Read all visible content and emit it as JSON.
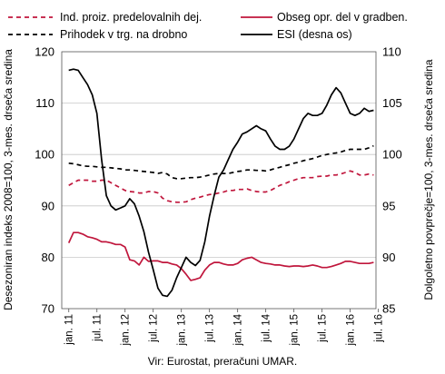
{
  "chart_data": {
    "type": "line",
    "xlabel": "",
    "ylabel": "Desezoniran indeks 2008=100, 3-mes. drseča sredina",
    "y2label": "Dolgoletno povprečje=100, 3-mes. drseča sredina",
    "source": "Vir: Eurostat, preračuni UMAR.",
    "ylim": [
      70,
      120
    ],
    "y2lim": [
      85,
      110
    ],
    "yticks": [
      "70",
      "80",
      "90",
      "100",
      "110",
      "120"
    ],
    "y2ticks": [
      "85",
      "90",
      "95",
      "100",
      "105",
      "110"
    ],
    "xticks": [
      "jan. 11",
      "jul. 11",
      "jan. 12",
      "jul. 12",
      "jan. 13",
      "jul. 13",
      "jan. 14",
      "jul. 14",
      "jan. 15",
      "jul. 15",
      "jan. 16",
      "jul. 16"
    ],
    "grid": "horizontal",
    "x_range_months": [
      0,
      67
    ],
    "series": [
      {
        "name": "Ind. proiz. predelovalnih dej.",
        "axis": "left",
        "color": "#c0163c",
        "dash": true,
        "values": [
          94.0,
          94.5,
          95.0,
          95.0,
          95.0,
          94.8,
          94.8,
          95.0,
          95.0,
          94.5,
          94.0,
          93.5,
          93.0,
          92.8,
          92.7,
          92.5,
          92.5,
          92.8,
          92.8,
          92.5,
          91.5,
          91.0,
          90.8,
          90.7,
          90.7,
          90.8,
          91.2,
          91.5,
          91.7,
          92.0,
          92.2,
          92.3,
          92.5,
          92.7,
          93.0,
          93.0,
          93.2,
          93.2,
          93.3,
          93.0,
          92.8,
          92.7,
          92.7,
          93.0,
          93.5,
          94.0,
          94.3,
          94.7,
          95.0,
          95.3,
          95.5,
          95.5,
          95.5,
          95.7,
          95.8,
          95.8,
          96.0,
          96.0,
          96.2,
          96.5,
          96.8,
          96.5,
          96.0,
          96.0,
          96.2,
          96.0
        ]
      },
      {
        "name": "Obseg opr. del v gradben.",
        "axis": "left",
        "color": "#c0163c",
        "dash": false,
        "values": [
          82.8,
          84.8,
          84.8,
          84.5,
          84.0,
          83.8,
          83.5,
          83.0,
          83.0,
          82.8,
          82.5,
          82.5,
          82.0,
          79.5,
          79.3,
          78.5,
          80.0,
          79.2,
          79.3,
          79.3,
          79.0,
          79.0,
          78.7,
          78.5,
          77.8,
          76.7,
          75.5,
          75.7,
          76.0,
          77.5,
          78.5,
          79.0,
          79.0,
          78.7,
          78.5,
          78.5,
          78.8,
          79.5,
          79.8,
          80.0,
          79.5,
          79.0,
          78.8,
          78.7,
          78.5,
          78.5,
          78.3,
          78.2,
          78.3,
          78.3,
          78.2,
          78.3,
          78.5,
          78.3,
          78.0,
          78.0,
          78.2,
          78.5,
          78.8,
          79.2,
          79.2,
          79.0,
          78.8,
          78.8,
          78.8,
          79.0
        ]
      },
      {
        "name": "Prihodek v trg. na drobno",
        "axis": "left",
        "color": "#000000",
        "dash": true,
        "values": [
          98.3,
          98.2,
          98.0,
          97.8,
          97.7,
          97.7,
          97.6,
          97.5,
          97.5,
          97.4,
          97.3,
          97.2,
          97.0,
          97.0,
          96.9,
          96.8,
          96.7,
          96.6,
          96.5,
          96.3,
          96.5,
          96.2,
          95.5,
          95.3,
          95.3,
          95.4,
          95.5,
          95.5,
          95.6,
          95.8,
          96.0,
          96.2,
          96.3,
          96.3,
          96.3,
          96.5,
          96.7,
          96.8,
          97.0,
          97.0,
          96.9,
          96.9,
          96.8,
          97.0,
          97.3,
          97.5,
          97.8,
          98.0,
          98.3,
          98.5,
          98.8,
          99.0,
          99.2,
          99.5,
          99.8,
          100.0,
          100.2,
          100.3,
          100.5,
          100.8,
          101.0,
          101.0,
          101.0,
          101.0,
          101.3,
          101.7
        ]
      },
      {
        "name": "ESI (desna os)",
        "axis": "right",
        "color": "#000000",
        "dash": false,
        "values": [
          108.2,
          108.3,
          108.2,
          107.5,
          106.8,
          105.8,
          104.0,
          99.5,
          96.0,
          95.0,
          94.6,
          94.8,
          95.0,
          95.7,
          95.2,
          94.0,
          92.5,
          90.5,
          88.8,
          87.0,
          86.3,
          86.2,
          86.8,
          88.0,
          89.0,
          90.0,
          89.5,
          89.2,
          89.7,
          91.5,
          94.0,
          96.0,
          97.8,
          98.5,
          99.5,
          100.5,
          101.2,
          102.0,
          102.2,
          102.5,
          102.8,
          102.5,
          102.3,
          101.5,
          100.8,
          100.5,
          100.5,
          100.8,
          101.5,
          102.5,
          103.5,
          104.0,
          103.8,
          103.8,
          104.0,
          104.8,
          105.8,
          106.5,
          106.0,
          105.0,
          104.0,
          103.8,
          104.0,
          104.5,
          104.2,
          104.3
        ]
      }
    ]
  }
}
